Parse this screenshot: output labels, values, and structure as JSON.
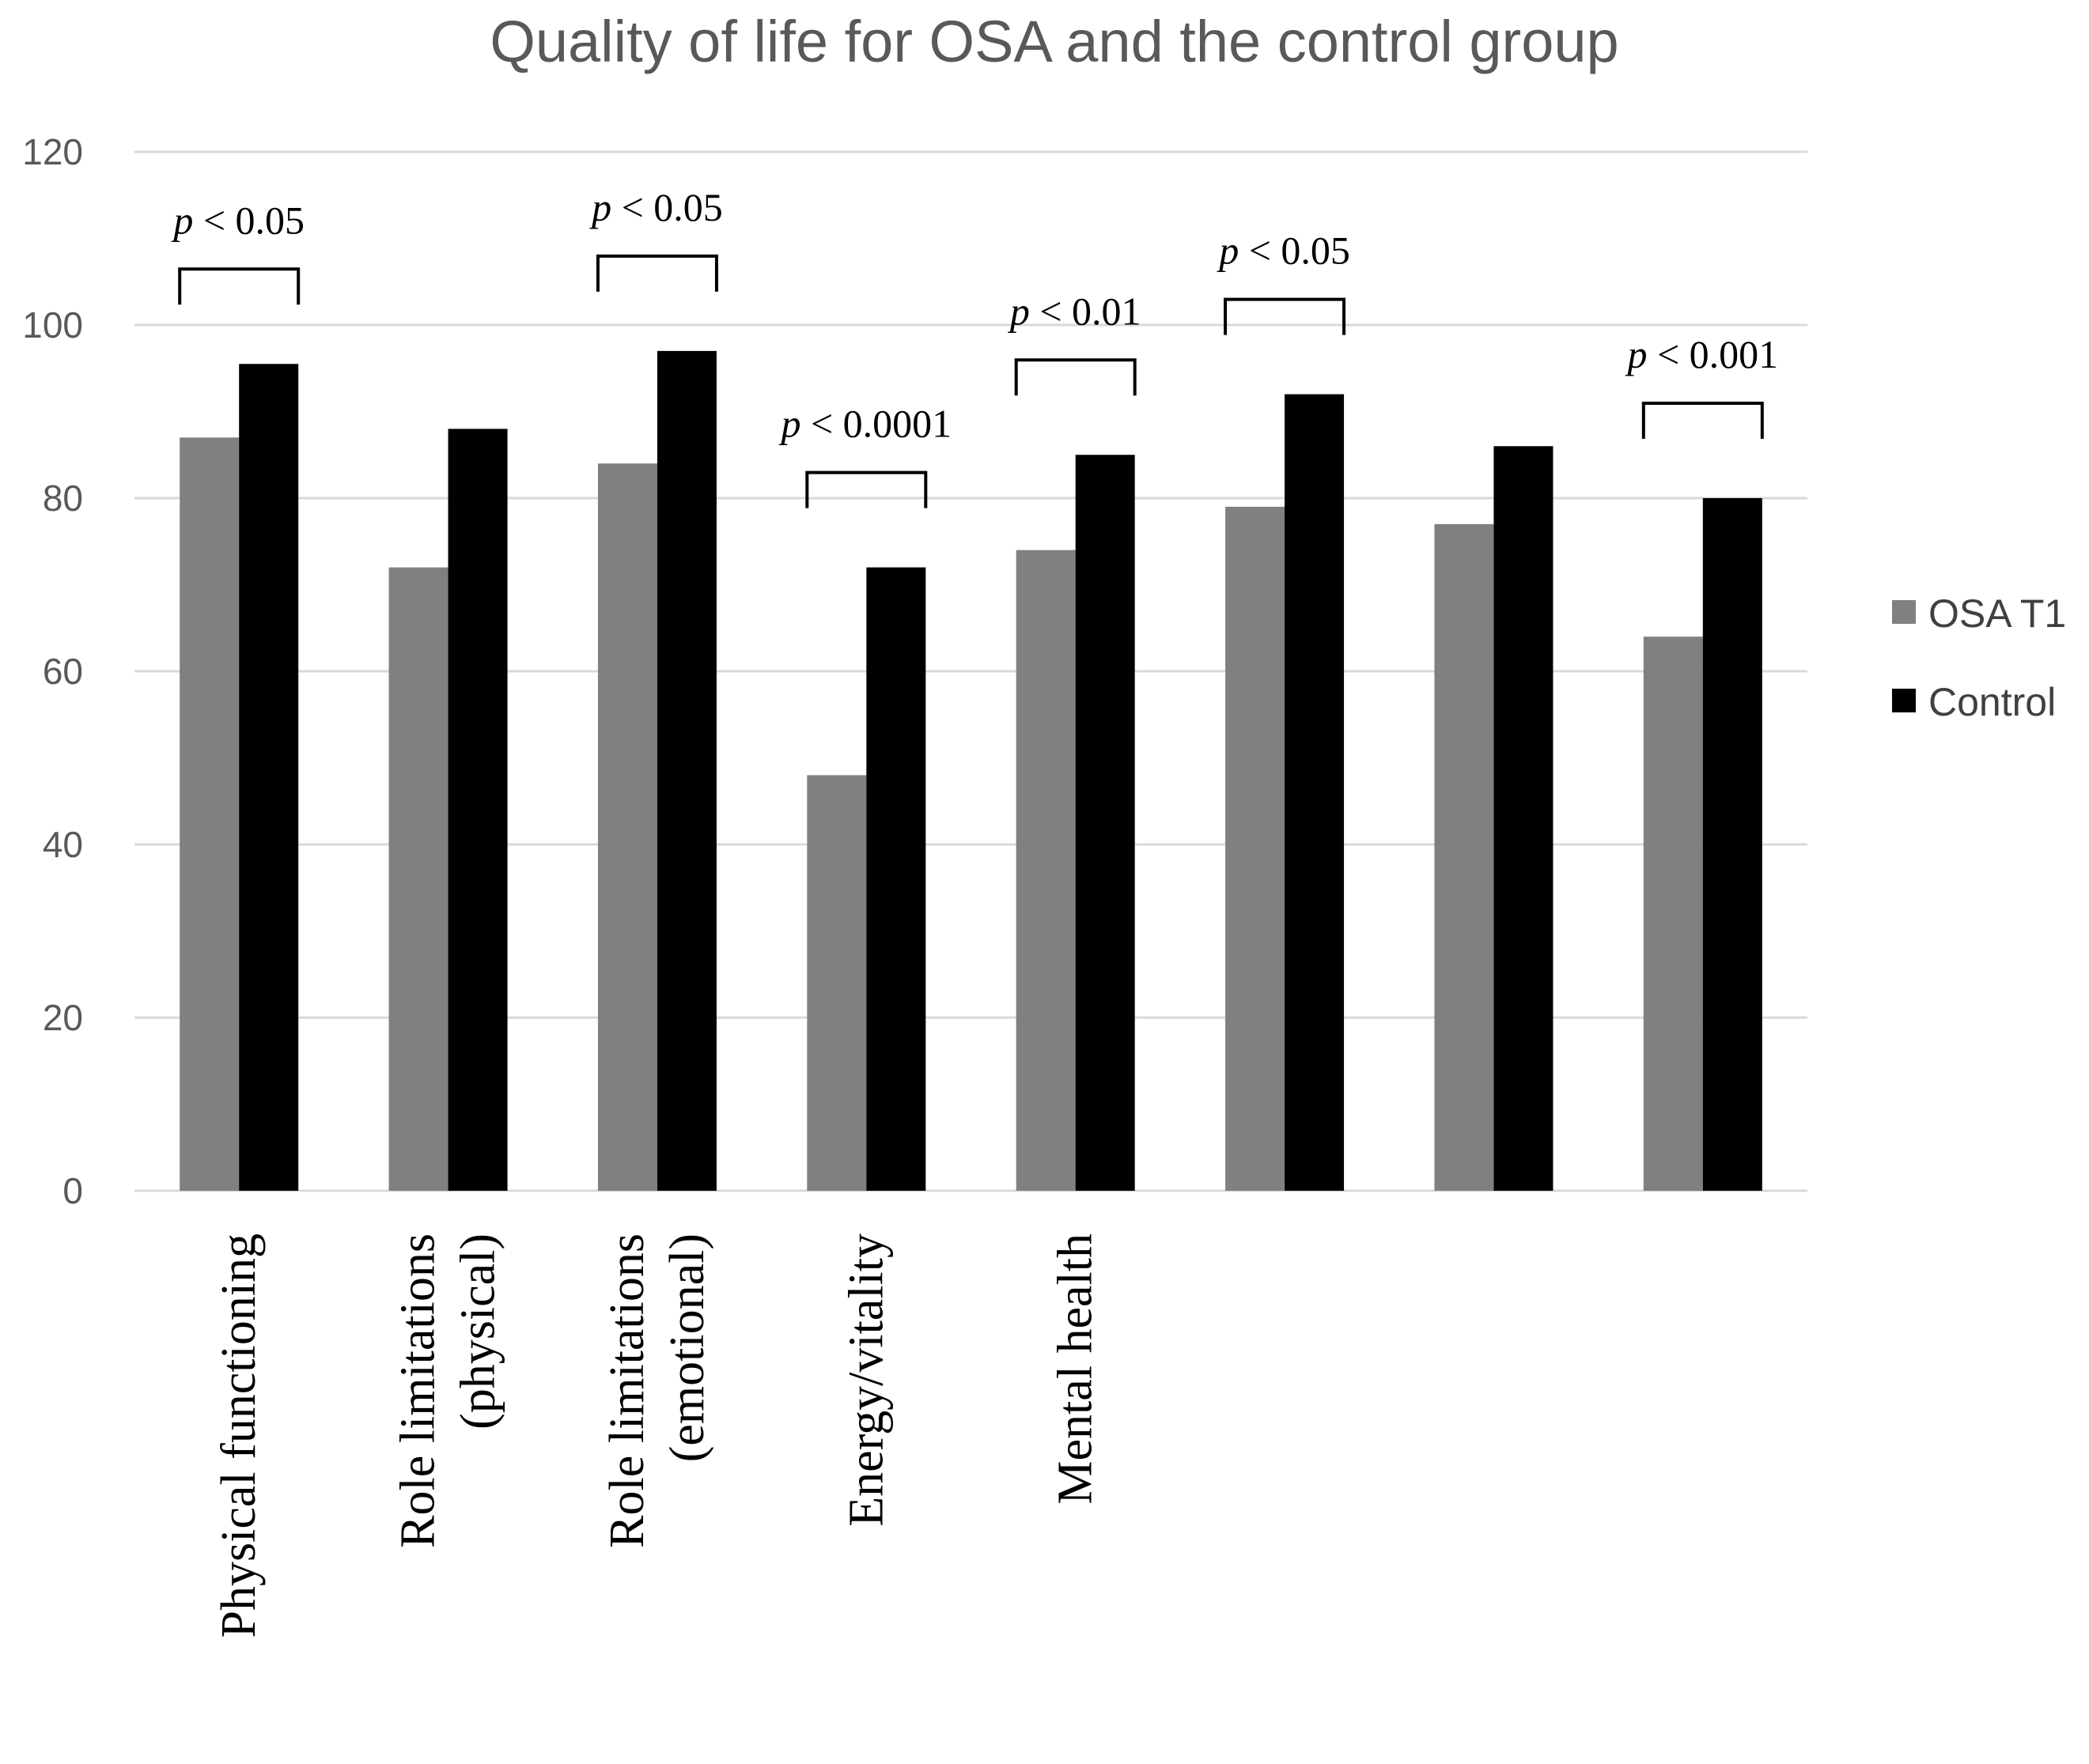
{
  "chart_data": {
    "type": "bar",
    "title": "Quality of life for OSA and the control group",
    "xlabel": "",
    "ylabel": "",
    "ylim": [
      0,
      120
    ],
    "yticks": [
      0,
      20,
      40,
      60,
      80,
      100,
      120
    ],
    "grid": true,
    "legend_position": "right",
    "categories": [
      [
        "Physical functioning"
      ],
      [
        "Role limitations",
        "(physical)"
      ],
      [
        "Role limitations",
        "(emotional)"
      ],
      [
        "Energy/vitality"
      ],
      [
        "Mental health"
      ],
      [],
      [],
      []
    ],
    "series": [
      {
        "name": "OSA T1",
        "color": "#808080",
        "values": [
          87,
          72,
          84,
          48,
          74,
          79,
          77,
          64
        ]
      },
      {
        "name": "Control",
        "color": "#000000",
        "values": [
          95.5,
          88,
          97,
          72,
          85,
          92,
          86,
          80
        ]
      }
    ],
    "annotations": [
      {
        "category_index": 0,
        "p": "p",
        "text": "< 0.05"
      },
      {
        "category_index": 2,
        "p": "p",
        "text": "< 0.05"
      },
      {
        "category_index": 3,
        "p": "p",
        "text": "< 0.0001"
      },
      {
        "category_index": 4,
        "p": "p",
        "text": "< 0.01"
      },
      {
        "category_index": 5,
        "p": "p",
        "text": "< 0.05"
      },
      {
        "category_index": 7,
        "p": "p",
        "text": "< 0.001"
      }
    ],
    "colors": {
      "gridline": "#d9d9d9",
      "axis_text": "#595959"
    }
  }
}
